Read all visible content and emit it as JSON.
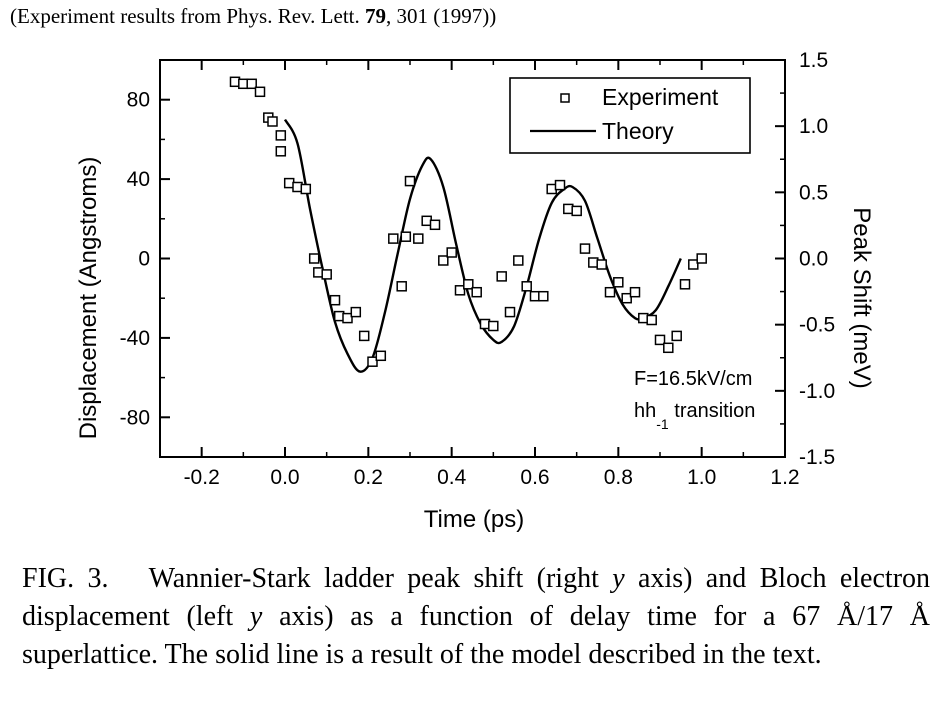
{
  "source_note": {
    "prefix": "(Experiment results from Phys. Rev. Lett. ",
    "volume": "79",
    "suffix": ", 301 (1997))"
  },
  "caption": {
    "label": "FIG. 3.",
    "p1": "Wannier-Stark ladder peak shift (right ",
    "var1": "y",
    "p2": " axis) and Bloch electron displacement (left ",
    "var2": "y",
    "p3": " axis) as a function of delay time for a 67 Å/17 Å superlattice.  The solid line is a result of the model described in the text."
  },
  "chart_data": {
    "type": "scatter",
    "xlabel": "Time (ps)",
    "ylabel": "Displacement (Angstroms)",
    "y2label": "Peak Shift (meV)",
    "xlim": [
      -0.3,
      1.2
    ],
    "ylim": [
      -100,
      100
    ],
    "y2lim": [
      -1.5,
      1.5
    ],
    "x_ticks": [
      -0.2,
      0.0,
      0.2,
      0.4,
      0.6,
      0.8,
      1.0,
      1.2
    ],
    "x_tick_labels": [
      "-0.2",
      "0.0",
      "0.2",
      "0.4",
      "0.6",
      "0.8",
      "1.0",
      "1.2"
    ],
    "y_ticks": [
      80,
      40,
      0,
      -40,
      -80
    ],
    "y_tick_labels": [
      "80",
      "40",
      "0",
      "-40",
      "-80"
    ],
    "y2_ticks": [
      1.5,
      1.0,
      0.5,
      0.0,
      -0.5,
      -1.0,
      -1.5
    ],
    "y2_tick_labels": [
      "1.5",
      "1.0",
      "0.5",
      "0.0",
      "-0.5",
      "-1.0",
      "-1.5"
    ],
    "legend": {
      "position": "top-right",
      "entries": [
        "Experiment",
        "Theory"
      ]
    },
    "annotation": {
      "field": "F=16.5kV/cm",
      "transition_main": "hh",
      "transition_sub": "-1",
      "transition_rest": " transition"
    },
    "series": [
      {
        "name": "Experiment",
        "marker": "open-square",
        "points": [
          [
            -0.12,
            89
          ],
          [
            -0.1,
            88
          ],
          [
            -0.08,
            88
          ],
          [
            -0.06,
            84
          ],
          [
            -0.04,
            71
          ],
          [
            -0.03,
            69
          ],
          [
            -0.01,
            62
          ],
          [
            -0.01,
            54
          ],
          [
            0.01,
            38
          ],
          [
            0.03,
            36
          ],
          [
            0.05,
            35
          ],
          [
            0.07,
            0
          ],
          [
            0.08,
            -7
          ],
          [
            0.1,
            -8
          ],
          [
            0.12,
            -21
          ],
          [
            0.13,
            -29
          ],
          [
            0.15,
            -30
          ],
          [
            0.17,
            -27
          ],
          [
            0.19,
            -39
          ],
          [
            0.21,
            -52
          ],
          [
            0.23,
            -49
          ],
          [
            0.26,
            10
          ],
          [
            0.28,
            -14
          ],
          [
            0.29,
            11
          ],
          [
            0.3,
            39
          ],
          [
            0.32,
            10
          ],
          [
            0.34,
            19
          ],
          [
            0.36,
            17
          ],
          [
            0.38,
            -1
          ],
          [
            0.4,
            3
          ],
          [
            0.42,
            -16
          ],
          [
            0.44,
            -13
          ],
          [
            0.46,
            -17
          ],
          [
            0.48,
            -33
          ],
          [
            0.5,
            -34
          ],
          [
            0.52,
            -9
          ],
          [
            0.54,
            -27
          ],
          [
            0.56,
            -1
          ],
          [
            0.58,
            -14
          ],
          [
            0.6,
            -19
          ],
          [
            0.62,
            -19
          ],
          [
            0.64,
            35
          ],
          [
            0.66,
            37
          ],
          [
            0.68,
            25
          ],
          [
            0.7,
            24
          ],
          [
            0.72,
            5
          ],
          [
            0.74,
            -2
          ],
          [
            0.76,
            -3
          ],
          [
            0.78,
            -17
          ],
          [
            0.8,
            -12
          ],
          [
            0.82,
            -20
          ],
          [
            0.84,
            -17
          ],
          [
            0.86,
            -30
          ],
          [
            0.88,
            -31
          ],
          [
            0.9,
            -41
          ],
          [
            0.92,
            -45
          ],
          [
            0.94,
            -39
          ],
          [
            0.96,
            -13
          ],
          [
            0.98,
            -3
          ],
          [
            1.0,
            0
          ]
        ]
      },
      {
        "name": "Theory",
        "line": "solid",
        "points": [
          [
            0.0,
            70
          ],
          [
            0.03,
            58
          ],
          [
            0.06,
            25
          ],
          [
            0.09,
            -5
          ],
          [
            0.12,
            -32
          ],
          [
            0.15,
            -48
          ],
          [
            0.18,
            -57
          ],
          [
            0.21,
            -50
          ],
          [
            0.24,
            -27
          ],
          [
            0.27,
            2
          ],
          [
            0.3,
            30
          ],
          [
            0.33,
            47
          ],
          [
            0.35,
            50
          ],
          [
            0.38,
            36
          ],
          [
            0.41,
            8
          ],
          [
            0.44,
            -18
          ],
          [
            0.47,
            -33
          ],
          [
            0.5,
            -41
          ],
          [
            0.52,
            -42
          ],
          [
            0.55,
            -34
          ],
          [
            0.58,
            -14
          ],
          [
            0.61,
            10
          ],
          [
            0.64,
            28
          ],
          [
            0.67,
            35
          ],
          [
            0.69,
            36
          ],
          [
            0.72,
            29
          ],
          [
            0.75,
            10
          ],
          [
            0.78,
            -9
          ],
          [
            0.81,
            -23
          ],
          [
            0.84,
            -30
          ],
          [
            0.86,
            -30
          ],
          [
            0.89,
            -26
          ],
          [
            0.92,
            -14
          ],
          [
            0.95,
            0
          ]
        ]
      }
    ]
  }
}
